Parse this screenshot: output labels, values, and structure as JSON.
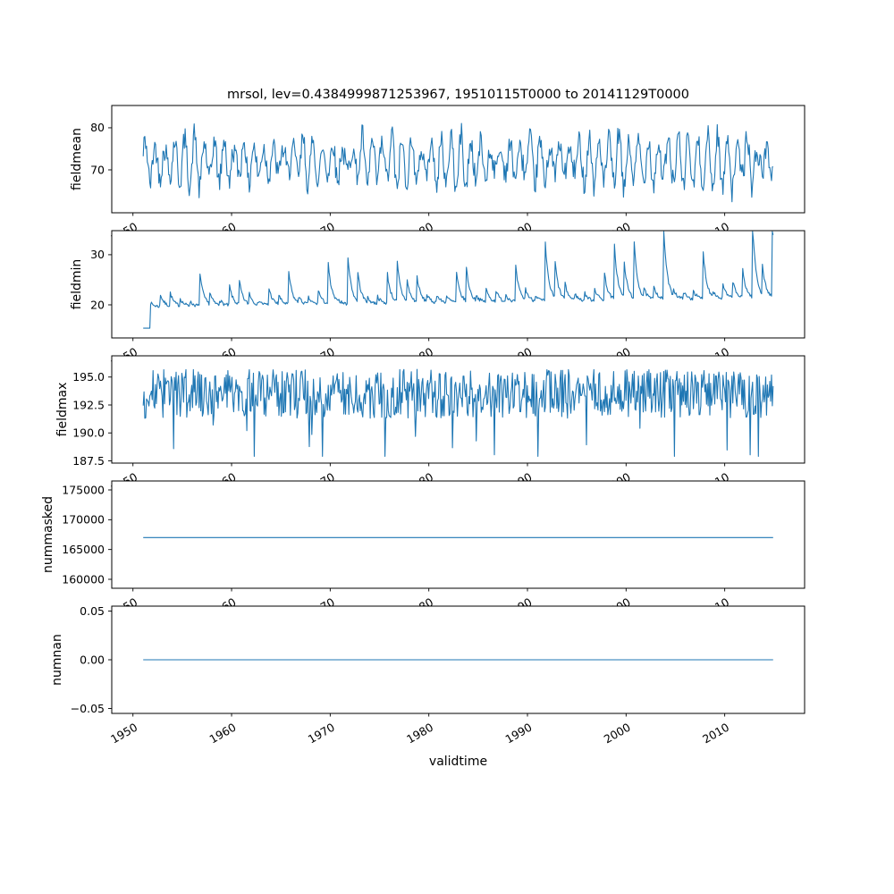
{
  "title": "mrsol, lev=0.4384999871253967, 19510115T0000 to 20141129T0000",
  "xlabel": "validtime",
  "chart_data": {
    "type": "line",
    "figure": "five stacked time-series subplots, shared x axis",
    "line_color": "#1f77b4",
    "axes_color": "#000000",
    "background": "#ffffff",
    "x": {
      "label": "validtime",
      "ticks": [
        1950,
        1960,
        1970,
        1980,
        1990,
        2000,
        2010
      ],
      "tick_labels": [
        "1950",
        "1960",
        "1970",
        "1980",
        "1990",
        "2000",
        "2010"
      ],
      "tick_rotation_deg": 30,
      "lim": [
        1947.85,
        2018.1
      ],
      "data_start": 1951.04,
      "data_end": 2014.91,
      "n_points": 767
    },
    "subplots": [
      {
        "ylabel": "fieldmean",
        "ytick_values": [
          70,
          80
        ],
        "ytick_labels": [
          "70",
          "80"
        ],
        "ylim": [
          59.8,
          85.3
        ],
        "series_summary": {
          "mean": 72,
          "min": 62.5,
          "max": 85,
          "pattern": "annual seasonal cycle with strong noise"
        },
        "gen": {
          "kind": "seasonal",
          "seed": 42,
          "base": 72,
          "amp": 4.6,
          "ampVar": 2.6,
          "noise": 5.6,
          "clamp": [
            62.4,
            85.4
          ]
        }
      },
      {
        "ylabel": "fieldmin",
        "ytick_values": [
          20,
          30
        ],
        "ytick_labels": [
          "20",
          "30"
        ],
        "ylim": [
          13.4,
          34.8
        ],
        "series_summary": {
          "start": 15.3,
          "typical": 20.5,
          "max": 34.5,
          "pattern": "flat low start, then sawtooth annual peaks with slow rising trend, largest peaks near 2000"
        },
        "gen": {
          "kind": "sawtooth",
          "seed": 7,
          "flatCount": 9,
          "flatValue": 15.35,
          "base": 19.6,
          "trend": 1.7,
          "decay": 2.8,
          "peakMin": 1.2,
          "peakMax": 11.5,
          "noise": 0.7,
          "clamp": [
            14.9,
            34.6
          ]
        }
      },
      {
        "ylabel": "fieldmax",
        "ytick_values": [
          187.5,
          190.0,
          192.5,
          195.0
        ],
        "ytick_labels": [
          "187.5",
          "190.0",
          "192.5",
          "195.0"
        ],
        "ylim": [
          187.3,
          196.9
        ],
        "series_summary": {
          "mean": 193.4,
          "min": 187.9,
          "max": 196.2,
          "pattern": "dense high-frequency noise with occasional deep downward spikes"
        },
        "gen": {
          "kind": "noise",
          "seed": 99,
          "base": 193.5,
          "spread": 4.4,
          "dipP": 0.03,
          "dipAmp": 4.2,
          "clamp": [
            187.9,
            196.3
          ]
        }
      },
      {
        "ylabel": "nummasked",
        "ytick_values": [
          160000,
          165000,
          170000,
          175000
        ],
        "ytick_labels": [
          "160000",
          "165000",
          "170000",
          "175000"
        ],
        "ylim": [
          158500,
          176500
        ],
        "series_summary": {
          "constant": 167000,
          "pattern": "perfectly flat line"
        },
        "gen": {
          "kind": "constant",
          "value": 167000
        }
      },
      {
        "ylabel": "numnan",
        "ytick_values": [
          -0.05,
          0.0,
          0.05
        ],
        "ytick_labels": [
          "−0.05",
          "0.00",
          "0.05"
        ],
        "ylim": [
          -0.055,
          0.055
        ],
        "series_summary": {
          "constant": 0,
          "pattern": "perfectly flat line at zero"
        },
        "gen": {
          "kind": "constant",
          "value": 0
        }
      }
    ]
  }
}
